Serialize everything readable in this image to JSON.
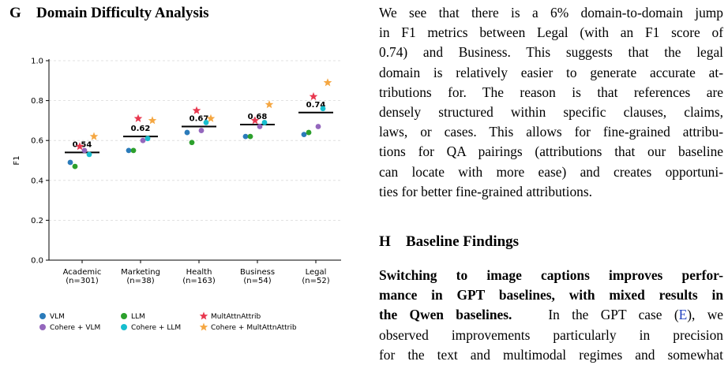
{
  "section_g": {
    "letter": "G",
    "title": "Domain Difficulty Analysis"
  },
  "section_h": {
    "letter": "H",
    "title": "Baseline Findings"
  },
  "paragraph_g": [
    "We see that there is a 6% domain-to-domain jump",
    "in F1 metrics between Legal (with an F1 score of",
    "0.74) and Business. This suggests that the legal",
    "domain is relatively easier to generate accurate at-",
    "tributions for. The reason is that references are",
    "densely structured within specific clauses, claims,",
    "laws, or cases. This allows for fine-grained attribu-",
    "tions for QA pairings (attributions that our baseline",
    "can locate with more ease) and creates opportuni-",
    "ties for better fine-grained attributions."
  ],
  "paragraph_h": {
    "bold_lines": [
      "Switching to image captions improves perfor-",
      "mance in GPT baselines, with mixed results in"
    ],
    "line3_bold": "the Qwen baselines.",
    "line3_pre": "In the GPT case (",
    "line3_link": "E",
    "line3_post": "), we",
    "line4": "observed improvements particularly in precision",
    "line5": "for the text and multimodal regimes and somewhat"
  },
  "chart_data": {
    "type": "scatter",
    "ylabel": "F1",
    "ylim": [
      0.0,
      1.0
    ],
    "yticks": [
      "0.0",
      "0.2",
      "0.4",
      "0.6",
      "0.8",
      "1.0"
    ],
    "categories": [
      "Academic",
      "Marketing",
      "Health",
      "Business",
      "Legal"
    ],
    "category_counts": [
      "(n=301)",
      "(n=38)",
      "(n=163)",
      "(n=54)",
      "(n=52)"
    ],
    "means": [
      0.54,
      0.62,
      0.67,
      0.68,
      0.74
    ],
    "mean_labels": [
      "0.54",
      "0.62",
      "0.67",
      "0.68",
      "0.74"
    ],
    "grid": "horizontal dashed",
    "legend_position": "bottom",
    "series": [
      {
        "name": "VLM",
        "marker": "circle",
        "color": "#2b7bba",
        "values": [
          0.49,
          0.55,
          0.64,
          0.62,
          0.63
        ]
      },
      {
        "name": "LLM",
        "marker": "circle",
        "color": "#2ca02c",
        "values": [
          0.47,
          0.55,
          0.59,
          0.62,
          0.64
        ]
      },
      {
        "name": "MultAttnAttrib",
        "marker": "star",
        "color": "#e8384f",
        "values": [
          0.57,
          0.71,
          0.75,
          0.7,
          0.82
        ]
      },
      {
        "name": "Cohere + VLM",
        "marker": "circle",
        "color": "#9467bd",
        "values": [
          0.55,
          0.6,
          0.65,
          0.67,
          0.67
        ]
      },
      {
        "name": "Cohere + LLM",
        "marker": "circle",
        "color": "#17becf",
        "values": [
          0.53,
          0.61,
          0.69,
          0.69,
          0.76
        ]
      },
      {
        "name": "Cohere + MultAttnAttrib",
        "marker": "star",
        "color": "#f5a742",
        "values": [
          0.62,
          0.7,
          0.71,
          0.78,
          0.89
        ]
      }
    ]
  }
}
